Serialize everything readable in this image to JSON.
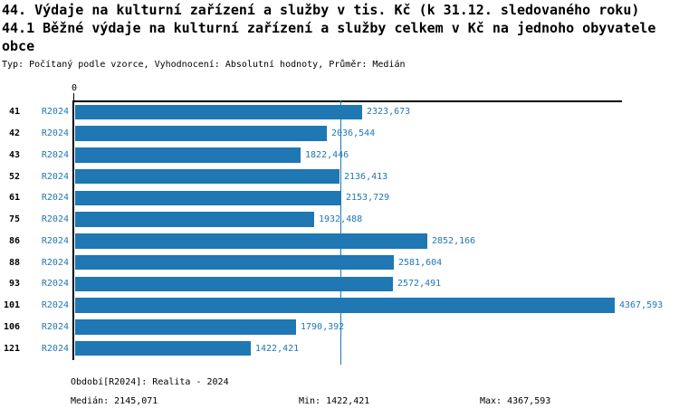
{
  "header": {
    "title_line1": "44. Výdaje na kulturní zařízení a služby v tis. Kč (k 31.12. sledovaného roku)",
    "title_line2": "44.1 Běžné výdaje na kulturní zařízení a služby celkem v Kč na jednoho obyvatele obce",
    "subtitle": "Typ: Počítaný podle vzorce, Vyhodnocení: Absolutní hodnoty, Průměr: Medián"
  },
  "chart_data": {
    "type": "bar",
    "orientation": "horizontal",
    "title": "44.1 Běžné výdaje na kulturní zařízení a služby celkem v Kč na jednoho obyvatele obce",
    "categories": [
      "41",
      "42",
      "43",
      "52",
      "61",
      "75",
      "86",
      "88",
      "93",
      "101",
      "106",
      "121"
    ],
    "series_label": "R2024",
    "values": [
      2323.673,
      2036.544,
      1822.446,
      2136.413,
      2153.729,
      1932.488,
      2852.166,
      2581.604,
      2572.491,
      4367.593,
      1790.392,
      1422.421
    ],
    "value_labels": [
      "2323,673",
      "2036,544",
      "1822,446",
      "2136,413",
      "2153,729",
      "1932,488",
      "2852,166",
      "2581,604",
      "2572,491",
      "4367,593",
      "1790,392",
      "1422,421"
    ],
    "axis_zero_label": "0",
    "xlim": [
      0,
      4425
    ],
    "median_value": 2145.071,
    "grid": false,
    "legend_position": "none",
    "bar_color": "#1F77B4",
    "text_color": "#1F77B4",
    "median_line_color": "#1F77B4"
  },
  "footer": {
    "period": "Období[R2024]: Realita - 2024",
    "median": "Medián: 2145,071",
    "min": "Min: 1422,421",
    "max": "Max: 4367,593"
  }
}
